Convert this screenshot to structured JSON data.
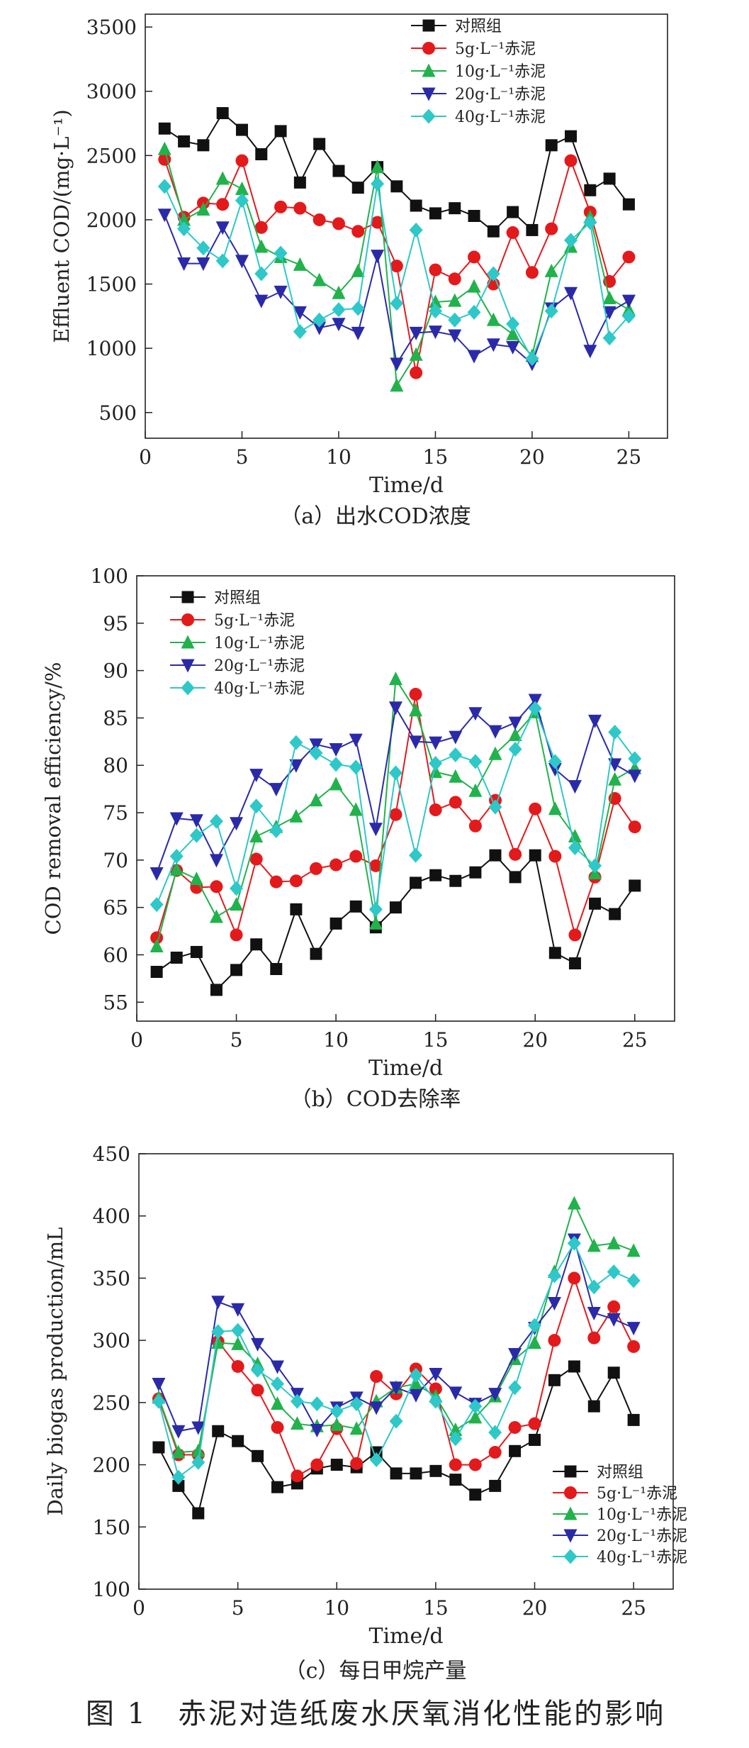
{
  "figure_caption": "图 1　赤泥对造纸废水厌氧消化性能的影响",
  "legend_labels": [
    "对照组",
    "5g·L⁻¹赤泥",
    "10g·L⁻¹赤泥",
    "20g·L⁻¹赤泥",
    "40g·L⁻¹赤泥"
  ],
  "series_colors": [
    "#111111",
    "#e31a1c",
    "#22b24c",
    "#2a2aa8",
    "#2ec8c8"
  ],
  "series_markers": [
    "square",
    "circle",
    "triangle-up",
    "triangle-down",
    "diamond"
  ],
  "chart_data": [
    {
      "type": "line",
      "caption": "（a）出水COD浓度",
      "xlabel": "Time/d",
      "ylabel": "Effluent COD/(mg·L⁻¹)",
      "xlim": [
        0,
        27
      ],
      "ylim": [
        300,
        3600
      ],
      "xticks": [
        0,
        5,
        10,
        15,
        20,
        25
      ],
      "yticks": [
        500,
        1000,
        1500,
        2000,
        2500,
        3000,
        3500
      ],
      "legend_position": "top-right",
      "x": [
        1,
        2,
        3,
        4,
        5,
        6,
        7,
        8,
        9,
        10,
        11,
        12,
        13,
        14,
        15,
        16,
        17,
        18,
        19,
        20,
        21,
        22,
        23,
        24,
        25
      ],
      "series": [
        {
          "name": "对照组",
          "values": [
            2710,
            2610,
            2580,
            2830,
            2700,
            2510,
            2690,
            2290,
            2590,
            2380,
            2250,
            2410,
            2260,
            2110,
            2050,
            2090,
            2030,
            1910,
            2060,
            1920,
            2580,
            2650,
            2230,
            2320,
            2120
          ]
        },
        {
          "name": "5g·L⁻¹赤泥",
          "values": [
            2470,
            2020,
            2130,
            2120,
            2460,
            1940,
            2100,
            2090,
            2000,
            1970,
            1910,
            1980,
            1640,
            810,
            1610,
            1540,
            1710,
            1500,
            1900,
            1590,
            1930,
            2460,
            2060,
            1520,
            1710
          ]
        },
        {
          "name": "10g·L⁻¹赤泥",
          "values": [
            2550,
            2000,
            2080,
            2320,
            2240,
            1790,
            1710,
            1650,
            1530,
            1430,
            1600,
            2410,
            710,
            950,
            1360,
            1370,
            1480,
            1220,
            1110,
            940,
            1600,
            1790,
            2020,
            1390,
            1300
          ]
        },
        {
          "name": "20g·L⁻¹赤泥",
          "values": [
            2040,
            1660,
            1660,
            1940,
            1680,
            1370,
            1440,
            1280,
            1160,
            1190,
            1120,
            1720,
            880,
            1120,
            1130,
            1100,
            940,
            1030,
            1010,
            880,
            1310,
            1430,
            980,
            1280,
            1370
          ]
        },
        {
          "name": "40g·L⁻¹赤泥",
          "values": [
            2260,
            1930,
            1780,
            1680,
            2150,
            1580,
            1740,
            1130,
            1220,
            1300,
            1310,
            2280,
            1350,
            1920,
            1290,
            1220,
            1280,
            1580,
            1190,
            920,
            1290,
            1840,
            1980,
            1080,
            1250
          ]
        }
      ]
    },
    {
      "type": "line",
      "caption": "（b）COD去除率",
      "xlabel": "Time/d",
      "ylabel": "COD removal efficiency/%",
      "xlim": [
        0,
        27
      ],
      "ylim": [
        53,
        100
      ],
      "xticks": [
        0,
        5,
        10,
        15,
        20,
        25
      ],
      "yticks": [
        55,
        60,
        65,
        70,
        75,
        80,
        85,
        90,
        95,
        100
      ],
      "legend_position": "top-left",
      "x": [
        1,
        2,
        3,
        4,
        5,
        6,
        7,
        8,
        9,
        10,
        11,
        12,
        13,
        14,
        15,
        16,
        17,
        18,
        19,
        20,
        21,
        22,
        23,
        24,
        25
      ],
      "series": [
        {
          "name": "对照组",
          "values": [
            58.2,
            59.7,
            60.3,
            56.3,
            58.4,
            61.1,
            58.5,
            64.8,
            60.1,
            63.3,
            65.1,
            62.9,
            65.0,
            67.6,
            68.4,
            67.8,
            68.7,
            70.5,
            68.2,
            70.5,
            60.2,
            59.1,
            65.4,
            64.3,
            67.3
          ]
        },
        {
          "name": "5g·L⁻¹赤泥",
          "values": [
            61.8,
            68.9,
            67.1,
            67.2,
            62.1,
            70.1,
            67.7,
            67.8,
            69.1,
            69.5,
            70.4,
            69.4,
            74.8,
            87.5,
            75.3,
            76.1,
            73.6,
            76.3,
            70.6,
            75.4,
            70.4,
            62.1,
            68.2,
            76.5,
            73.5
          ]
        },
        {
          "name": "10g·L⁻¹赤泥",
          "values": [
            60.9,
            69.0,
            68.0,
            64.0,
            65.3,
            72.5,
            73.5,
            74.6,
            76.3,
            78.0,
            75.3,
            63.3,
            89.1,
            85.8,
            79.3,
            78.8,
            77.3,
            81.2,
            83.2,
            85.6,
            75.4,
            72.5,
            68.6,
            78.5,
            79.7
          ]
        },
        {
          "name": "20g·L⁻¹赤泥",
          "values": [
            68.6,
            74.4,
            74.2,
            70.0,
            73.9,
            79.0,
            77.5,
            80.0,
            82.2,
            81.7,
            82.7,
            73.3,
            86.1,
            82.5,
            82.4,
            83.0,
            85.5,
            83.6,
            84.5,
            86.9,
            79.6,
            77.8,
            84.7,
            80.1,
            78.9
          ]
        },
        {
          "name": "40g·L⁻¹赤泥",
          "values": [
            65.3,
            70.4,
            72.6,
            74.1,
            67.0,
            75.7,
            73.1,
            82.4,
            81.3,
            80.1,
            79.8,
            64.8,
            79.2,
            70.5,
            80.2,
            81.1,
            80.4,
            75.6,
            81.7,
            86.0,
            80.4,
            71.3,
            69.4,
            83.5,
            80.7
          ]
        }
      ]
    },
    {
      "type": "line",
      "caption": "（c）每日甲烷产量",
      "xlabel": "Time/d",
      "ylabel": "Daily biogas production/mL",
      "xlim": [
        0,
        27
      ],
      "ylim": [
        100,
        450
      ],
      "xticks": [
        0,
        5,
        10,
        15,
        20,
        25
      ],
      "yticks": [
        100,
        150,
        200,
        250,
        300,
        350,
        400,
        450
      ],
      "legend_position": "bottom-right",
      "x": [
        1,
        2,
        3,
        4,
        5,
        6,
        7,
        8,
        9,
        10,
        11,
        12,
        13,
        14,
        15,
        16,
        17,
        18,
        19,
        20,
        21,
        22,
        23,
        24,
        25
      ],
      "series": [
        {
          "name": "对照组",
          "values": [
            214,
            183,
            161,
            227,
            219,
            207,
            182,
            185,
            197,
            200,
            198,
            210,
            193,
            193,
            195,
            188,
            176,
            183,
            211,
            220,
            268,
            279,
            247,
            274,
            236
          ]
        },
        {
          "name": "5g·L⁻¹赤泥",
          "values": [
            253,
            208,
            208,
            299,
            279,
            260,
            230,
            191,
            200,
            229,
            201,
            271,
            257,
            277,
            261,
            200,
            200,
            210,
            230,
            233,
            300,
            350,
            302,
            327,
            295
          ]
        },
        {
          "name": "10g·L⁻¹赤泥",
          "values": [
            254,
            210,
            211,
            298,
            297,
            281,
            249,
            233,
            231,
            232,
            229,
            251,
            262,
            265,
            255,
            228,
            238,
            255,
            285,
            298,
            355,
            410,
            376,
            378,
            372
          ]
        },
        {
          "name": "20g·L⁻¹赤泥",
          "values": [
            265,
            227,
            230,
            331,
            325,
            297,
            279,
            257,
            228,
            246,
            254,
            246,
            262,
            256,
            273,
            258,
            249,
            257,
            289,
            310,
            330,
            381,
            322,
            317,
            310
          ]
        },
        {
          "name": "40g·L⁻¹赤泥",
          "values": [
            251,
            190,
            202,
            307,
            308,
            276,
            265,
            251,
            249,
            243,
            249,
            204,
            235,
            272,
            251,
            221,
            247,
            226,
            262,
            312,
            352,
            378,
            343,
            355,
            348
          ]
        }
      ]
    }
  ]
}
